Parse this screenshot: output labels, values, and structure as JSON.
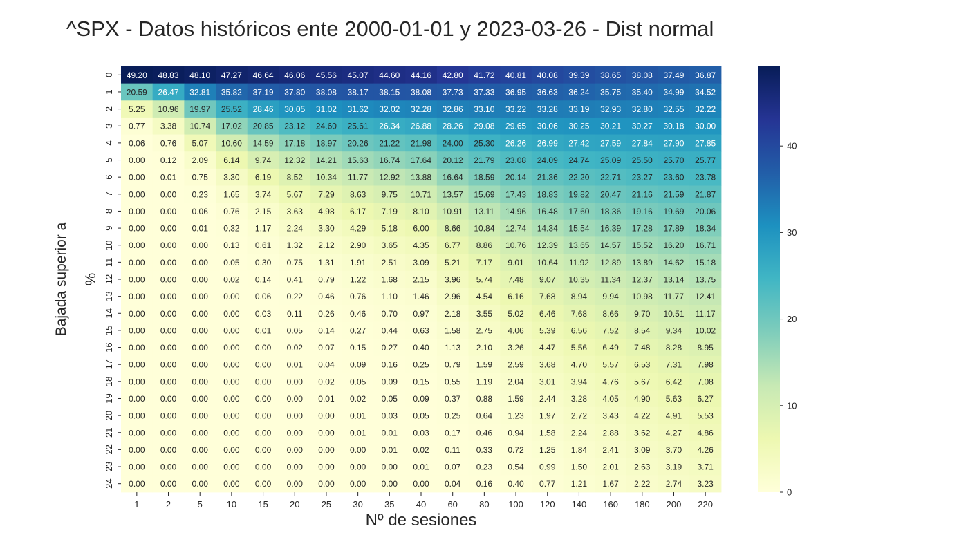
{
  "chart_data": {
    "type": "heatmap",
    "title": "^SPX -  Datos históricos ente 2000-01-01 y 2023-03-26 - Dist normal",
    "xlabel": "Nº de sesiones",
    "ylabel_lines": [
      "Bajada superior a",
      "%"
    ],
    "x_categories": [
      "1",
      "2",
      "5",
      "10",
      "15",
      "20",
      "25",
      "30",
      "35",
      "40",
      "60",
      "80",
      "100",
      "120",
      "140",
      "160",
      "180",
      "200",
      "220"
    ],
    "y_categories": [
      "0",
      "1",
      "2",
      "3",
      "4",
      "5",
      "6",
      "7",
      "8",
      "9",
      "10",
      "11",
      "12",
      "13",
      "14",
      "15",
      "16",
      "17",
      "18",
      "19",
      "20",
      "21",
      "22",
      "23",
      "24"
    ],
    "values": [
      [
        49.2,
        48.83,
        48.1,
        47.27,
        46.64,
        46.06,
        45.56,
        45.07,
        44.6,
        44.16,
        42.8,
        41.72,
        40.81,
        40.08,
        39.39,
        38.65,
        38.08,
        37.49,
        36.87
      ],
      [
        20.59,
        26.47,
        32.81,
        35.82,
        37.19,
        37.8,
        38.08,
        38.17,
        38.15,
        38.08,
        37.73,
        37.33,
        36.95,
        36.63,
        36.24,
        35.75,
        35.4,
        34.99,
        34.52
      ],
      [
        5.25,
        10.96,
        19.97,
        25.52,
        28.46,
        30.05,
        31.02,
        31.62,
        32.02,
        32.28,
        32.86,
        33.1,
        33.22,
        33.28,
        33.19,
        32.93,
        32.8,
        32.55,
        32.22
      ],
      [
        0.77,
        3.38,
        10.74,
        17.02,
        20.85,
        23.12,
        24.6,
        25.61,
        26.34,
        26.88,
        28.26,
        29.08,
        29.65,
        30.06,
        30.25,
        30.21,
        30.27,
        30.18,
        30.0
      ],
      [
        0.06,
        0.76,
        5.07,
        10.6,
        14.59,
        17.18,
        18.97,
        20.26,
        21.22,
        21.98,
        24.0,
        25.3,
        26.26,
        26.99,
        27.42,
        27.59,
        27.84,
        27.9,
        27.85
      ],
      [
        0.0,
        0.12,
        2.09,
        6.14,
        9.74,
        12.32,
        14.21,
        15.63,
        16.74,
        17.64,
        20.12,
        21.79,
        23.08,
        24.09,
        24.74,
        25.09,
        25.5,
        25.7,
        25.77
      ],
      [
        0.0,
        0.01,
        0.75,
        3.3,
        6.19,
        8.52,
        10.34,
        11.77,
        12.92,
        13.88,
        16.64,
        18.59,
        20.14,
        21.36,
        22.2,
        22.71,
        23.27,
        23.6,
        23.78
      ],
      [
        0.0,
        0.0,
        0.23,
        1.65,
        3.74,
        5.67,
        7.29,
        8.63,
        9.75,
        10.71,
        13.57,
        15.69,
        17.43,
        18.83,
        19.82,
        20.47,
        21.16,
        21.59,
        21.87
      ],
      [
        0.0,
        0.0,
        0.06,
        0.76,
        2.15,
        3.63,
        4.98,
        6.17,
        7.19,
        8.1,
        10.91,
        13.11,
        14.96,
        16.48,
        17.6,
        18.36,
        19.16,
        19.69,
        20.06
      ],
      [
        0.0,
        0.0,
        0.01,
        0.32,
        1.17,
        2.24,
        3.3,
        4.29,
        5.18,
        6.0,
        8.66,
        10.84,
        12.74,
        14.34,
        15.54,
        16.39,
        17.28,
        17.89,
        18.34
      ],
      [
        0.0,
        0.0,
        0.0,
        0.13,
        0.61,
        1.32,
        2.12,
        2.9,
        3.65,
        4.35,
        6.77,
        8.86,
        10.76,
        12.39,
        13.65,
        14.57,
        15.52,
        16.2,
        16.71
      ],
      [
        0.0,
        0.0,
        0.0,
        0.05,
        0.3,
        0.75,
        1.31,
        1.91,
        2.51,
        3.09,
        5.21,
        7.17,
        9.01,
        10.64,
        11.92,
        12.89,
        13.89,
        14.62,
        15.18
      ],
      [
        0.0,
        0.0,
        0.0,
        0.02,
        0.14,
        0.41,
        0.79,
        1.22,
        1.68,
        2.15,
        3.96,
        5.74,
        7.48,
        9.07,
        10.35,
        11.34,
        12.37,
        13.14,
        13.75
      ],
      [
        0.0,
        0.0,
        0.0,
        0.0,
        0.06,
        0.22,
        0.46,
        0.76,
        1.1,
        1.46,
        2.96,
        4.54,
        6.16,
        7.68,
        8.94,
        9.94,
        10.98,
        11.77,
        12.41
      ],
      [
        0.0,
        0.0,
        0.0,
        0.0,
        0.03,
        0.11,
        0.26,
        0.46,
        0.7,
        0.97,
        2.18,
        3.55,
        5.02,
        6.46,
        7.68,
        8.66,
        9.7,
        10.51,
        11.17
      ],
      [
        0.0,
        0.0,
        0.0,
        0.0,
        0.01,
        0.05,
        0.14,
        0.27,
        0.44,
        0.63,
        1.58,
        2.75,
        4.06,
        5.39,
        6.56,
        7.52,
        8.54,
        9.34,
        10.02
      ],
      [
        0.0,
        0.0,
        0.0,
        0.0,
        0.0,
        0.02,
        0.07,
        0.15,
        0.27,
        0.4,
        1.13,
        2.1,
        3.26,
        4.47,
        5.56,
        6.49,
        7.48,
        8.28,
        8.95
      ],
      [
        0.0,
        0.0,
        0.0,
        0.0,
        0.0,
        0.01,
        0.04,
        0.09,
        0.16,
        0.25,
        0.79,
        1.59,
        2.59,
        3.68,
        4.7,
        5.57,
        6.53,
        7.31,
        7.98
      ],
      [
        0.0,
        0.0,
        0.0,
        0.0,
        0.0,
        0.0,
        0.02,
        0.05,
        0.09,
        0.15,
        0.55,
        1.19,
        2.04,
        3.01,
        3.94,
        4.76,
        5.67,
        6.42,
        7.08
      ],
      [
        0.0,
        0.0,
        0.0,
        0.0,
        0.0,
        0.0,
        0.01,
        0.02,
        0.05,
        0.09,
        0.37,
        0.88,
        1.59,
        2.44,
        3.28,
        4.05,
        4.9,
        5.63,
        6.27
      ],
      [
        0.0,
        0.0,
        0.0,
        0.0,
        0.0,
        0.0,
        0.0,
        0.01,
        0.03,
        0.05,
        0.25,
        0.64,
        1.23,
        1.97,
        2.72,
        3.43,
        4.22,
        4.91,
        5.53
      ],
      [
        0.0,
        0.0,
        0.0,
        0.0,
        0.0,
        0.0,
        0.0,
        0.01,
        0.01,
        0.03,
        0.17,
        0.46,
        0.94,
        1.58,
        2.24,
        2.88,
        3.62,
        4.27,
        4.86
      ],
      [
        0.0,
        0.0,
        0.0,
        0.0,
        0.0,
        0.0,
        0.0,
        0.0,
        0.01,
        0.02,
        0.11,
        0.33,
        0.72,
        1.25,
        1.84,
        2.41,
        3.09,
        3.7,
        4.26
      ],
      [
        0.0,
        0.0,
        0.0,
        0.0,
        0.0,
        0.0,
        0.0,
        0.0,
        0.0,
        0.01,
        0.07,
        0.23,
        0.54,
        0.99,
        1.5,
        2.01,
        2.63,
        3.19,
        3.71
      ],
      [
        0.0,
        0.0,
        0.0,
        0.0,
        0.0,
        0.0,
        0.0,
        0.0,
        0.0,
        0.0,
        0.04,
        0.16,
        0.4,
        0.77,
        1.21,
        1.67,
        2.22,
        2.74,
        3.23
      ]
    ],
    "value_range": [
      0,
      49.2
    ],
    "colormap": "YlGnBu",
    "colormap_stops": [
      "#ffffd9",
      "#edf8b1",
      "#c7e9b4",
      "#7fcdbb",
      "#41b6c4",
      "#1d91c0",
      "#225ea8",
      "#253494",
      "#081d58"
    ],
    "colorbar_ticks": [
      0,
      10,
      20,
      30,
      40
    ],
    "grid": false
  }
}
